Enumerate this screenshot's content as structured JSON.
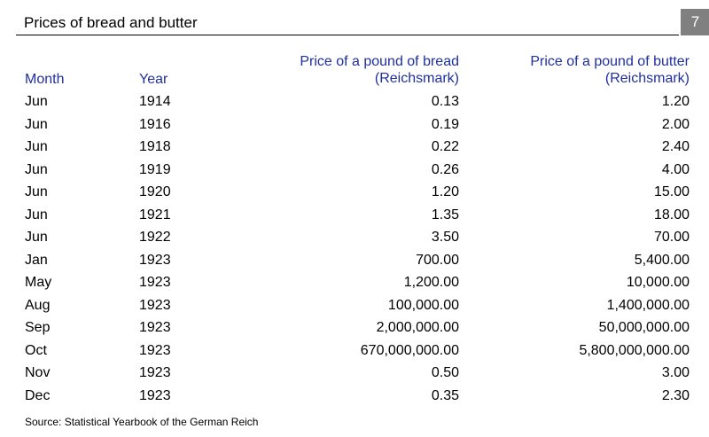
{
  "header": {
    "title": "Prices of bread and butter",
    "page_number": "7"
  },
  "columns": {
    "month": "Month",
    "year": "Year",
    "bread_line1": "Price of a pound of bread",
    "bread_line2": "(Reichsmark)",
    "butter_line1": "Price of a pound of butter",
    "butter_line2": "(Reichsmark)"
  },
  "rows": [
    {
      "month": "Jun",
      "year": "1914",
      "bread": "0.13",
      "butter": "1.20"
    },
    {
      "month": "Jun",
      "year": "1916",
      "bread": "0.19",
      "butter": "2.00"
    },
    {
      "month": "Jun",
      "year": "1918",
      "bread": "0.22",
      "butter": "2.40"
    },
    {
      "month": "Jun",
      "year": "1919",
      "bread": "0.26",
      "butter": "4.00"
    },
    {
      "month": "Jun",
      "year": "1920",
      "bread": "1.20",
      "butter": "15.00"
    },
    {
      "month": "Jun",
      "year": "1921",
      "bread": "1.35",
      "butter": "18.00"
    },
    {
      "month": "Jun",
      "year": "1922",
      "bread": "3.50",
      "butter": "70.00"
    },
    {
      "month": "Jan",
      "year": "1923",
      "bread": "700.00",
      "butter": "5,400.00"
    },
    {
      "month": "May",
      "year": "1923",
      "bread": "1,200.00",
      "butter": "10,000.00"
    },
    {
      "month": "Aug",
      "year": "1923",
      "bread": "100,000.00",
      "butter": "1,400,000.00"
    },
    {
      "month": "Sep",
      "year": "1923",
      "bread": "2,000,000.00",
      "butter": "50,000,000.00"
    },
    {
      "month": "Oct",
      "year": "1923",
      "bread": "670,000,000.00",
      "butter": "5,800,000,000.00"
    },
    {
      "month": "Nov",
      "year": "1923",
      "bread": "0.50",
      "butter": "3.00"
    },
    {
      "month": "Dec",
      "year": "1923",
      "bread": "0.35",
      "butter": "2.30"
    }
  ],
  "source": "Source: Statistical Yearbook of the German Reich",
  "colors": {
    "header_text": "#1f2f9e",
    "page_box": "#808080"
  }
}
